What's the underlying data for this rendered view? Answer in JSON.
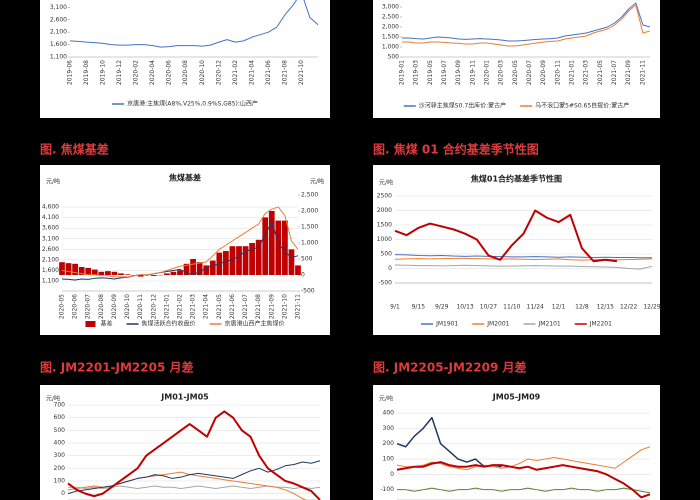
{
  "captions": [
    "图. 焦煤基差",
    "图. 焦煤 01 合约基差季节性图",
    "图. JM2201-JM2205 月差",
    "图. JM2205-JM2209 月差"
  ],
  "chart_data": [
    {
      "type": "line",
      "categories": [
        "2019-06",
        null,
        "2019-08",
        null,
        "2019-10",
        null,
        "2019-12",
        null,
        "2020-02",
        null,
        "2020-04",
        null,
        "2020-06",
        null,
        "2020-08",
        null,
        "2020-10",
        null,
        "2020-12",
        null,
        "2021-02",
        null,
        "2021-04",
        null,
        "2021-06",
        null,
        "2021-08",
        null,
        "2021-10",
        null,
        null
      ],
      "ylim": [
        1100,
        3600
      ],
      "yticks": [
        {
          "value": 1100,
          "label": "1,100"
        },
        {
          "value": 1600,
          "label": "1,600"
        },
        {
          "value": 2100,
          "label": "2,100"
        },
        {
          "value": 2600,
          "label": "2,600"
        },
        {
          "value": 3100,
          "label": "3,100"
        }
      ],
      "grid": false,
      "series": [
        {
          "name": "京唐港:主焦煤(A8%,V25%,0.9%S,G85):山西产",
          "color": "#4472c4",
          "values": [
            1750,
            1730,
            1700,
            1680,
            1650,
            1600,
            1580,
            1580,
            1600,
            1600,
            1560,
            1500,
            1520,
            1560,
            1560,
            1560,
            1540,
            1580,
            1700,
            1800,
            1700,
            1750,
            1900,
            2000,
            2100,
            2300,
            2800,
            3200,
            3700,
            2700,
            2400
          ]
        }
      ]
    },
    {
      "type": "line",
      "categories": [
        "2019-01",
        null,
        "2019-03",
        null,
        "2019-05",
        null,
        "2019-07",
        null,
        "2019-09",
        null,
        "2019-11",
        null,
        "2020-01",
        null,
        "2020-03",
        null,
        "2020-05",
        null,
        "2020-07",
        null,
        "2020-09",
        null,
        "2020-11",
        null,
        "2021-01",
        null,
        "2021-03",
        null,
        "2021-05",
        null,
        "2021-07",
        null,
        "2021-09",
        null,
        "2021-11",
        null
      ],
      "ylim": [
        500,
        3500
      ],
      "yticks": [
        500,
        {
          "value": 1000,
          "label": "1,000"
        },
        {
          "value": 1500,
          "label": "1,500"
        },
        {
          "value": 2000,
          "label": "2,000"
        },
        {
          "value": 2500,
          "label": "2,500"
        },
        {
          "value": 3000,
          "label": "3,000"
        }
      ],
      "grid": false,
      "series": [
        {
          "name": "沙河驿主焦煤S0.7出库价:蒙古产",
          "color": "#4472c4",
          "values": [
            1450,
            1450,
            1420,
            1400,
            1450,
            1500,
            1480,
            1450,
            1400,
            1380,
            1400,
            1420,
            1400,
            1380,
            1350,
            1300,
            1300,
            1320,
            1350,
            1380,
            1400,
            1420,
            1450,
            1550,
            1600,
            1650,
            1700,
            1800,
            1900,
            2000,
            2200,
            2500,
            2900,
            3200,
            2100,
            2000
          ]
        },
        {
          "name": "乌不浪口蒙5#S0.65自提价:蒙古产",
          "color": "#ed7d31",
          "values": [
            1250,
            1250,
            1200,
            1200,
            1250,
            1250,
            1230,
            1200,
            1180,
            1150,
            1150,
            1200,
            1200,
            1150,
            1100,
            1050,
            1050,
            1100,
            1150,
            1200,
            1250,
            1280,
            1300,
            1400,
            1450,
            1500,
            1550,
            1700,
            1800,
            1900,
            2100,
            2400,
            2800,
            3100,
            1700,
            1800
          ]
        }
      ]
    },
    {
      "type": "combo",
      "title": "焦煤基差",
      "yunit": "元/吨",
      "y2unit": "元/吨",
      "categories": [
        "2020-05",
        null,
        "2020-06",
        null,
        "2020-07",
        null,
        "2020-08",
        null,
        "2020-09",
        null,
        "2020-10",
        null,
        "2020-11",
        null,
        "2020-12",
        null,
        "2021-01",
        null,
        "2021-02",
        null,
        "2021-03",
        null,
        "2021-04",
        null,
        "2021-05",
        null,
        "2021-06",
        null,
        "2021-07",
        null,
        "2021-08",
        null,
        "2021-09",
        null,
        "2021-10",
        null,
        "2021-11"
      ],
      "ylim": [
        630,
        5170
      ],
      "yticks": [
        {
          "value": 1100,
          "label": "1,100"
        },
        {
          "value": 1600,
          "label": "1,600"
        },
        {
          "value": 2100,
          "label": "2,100"
        },
        {
          "value": 2600,
          "label": "2,600"
        },
        {
          "value": 3100,
          "label": "3,100"
        },
        {
          "value": 3600,
          "label": "3,600"
        },
        {
          "value": 4100,
          "label": "4,100"
        },
        {
          "value": 4600,
          "label": "4,600"
        }
      ],
      "y2lim": [
        -500,
        2500
      ],
      "y2ticks": [
        -500,
        0,
        500,
        {
          "value": 1000,
          "label": "1,000"
        },
        {
          "value": 1500,
          "label": "1,500"
        },
        {
          "value": 2000,
          "label": "2,000"
        },
        {
          "value": 2500,
          "label": "2,500"
        }
      ],
      "grid": true,
      "series": [
        {
          "name": "基差",
          "color": "#c00000",
          "kind": "bar",
          "axis": "y2",
          "values": [
            400,
            370,
            350,
            250,
            220,
            170,
            100,
            120,
            100,
            50,
            20,
            0,
            -50,
            20,
            -30,
            0,
            50,
            100,
            150,
            350,
            500,
            400,
            300,
            450,
            700,
            750,
            900,
            900,
            900,
            1000,
            1100,
            1800,
            2000,
            1700,
            1700,
            800,
            300
          ]
        },
        {
          "name": "焦煤活跃合约收盘价",
          "color": "#203864",
          "values": [
            1200,
            1180,
            1150,
            1200,
            1180,
            1230,
            1250,
            1230,
            1200,
            1250,
            1280,
            1350,
            1400,
            1380,
            1450,
            1500,
            1550,
            1600,
            1650,
            1500,
            1400,
            1550,
            1700,
            1850,
            1900,
            2050,
            2100,
            2300,
            2500,
            2600,
            2700,
            3300,
            3900,
            2900,
            2500,
            2200,
            2300
          ]
        },
        {
          "name": "京唐港山西产主焦煤价",
          "color": "#ed7d31",
          "values": [
            1600,
            1550,
            1500,
            1450,
            1400,
            1400,
            1350,
            1350,
            1300,
            1300,
            1300,
            1350,
            1400,
            1400,
            1450,
            1500,
            1600,
            1700,
            1800,
            1850,
            1900,
            1950,
            2000,
            2300,
            2600,
            2800,
            3000,
            3200,
            3400,
            3600,
            3800,
            4300,
            4500,
            4600,
            4200,
            3000,
            2600
          ]
        }
      ]
    },
    {
      "type": "line",
      "title": "焦煤01合约基差季节性图",
      "yunit": "元/吨",
      "categories": [
        "9/1",
        null,
        "9/15",
        null,
        "9/29",
        null,
        "10/13",
        null,
        "10/27",
        null,
        "11/10",
        null,
        "11/24",
        null,
        "12/1",
        null,
        "12/8",
        null,
        "12/15",
        null,
        "12/22",
        null,
        "12/29"
      ],
      "ylim": [
        -500,
        2500
      ],
      "yticks": [
        -500,
        0,
        500,
        1000,
        1500,
        2000,
        2500
      ],
      "grid": true,
      "series": [
        {
          "name": "JM1901",
          "color": "#4472c4",
          "values": [
            480,
            470,
            450,
            440,
            450,
            430,
            420,
            430,
            420,
            410,
            400,
            400,
            410,
            400,
            390,
            400,
            390,
            380,
            390,
            380,
            380,
            370,
            370
          ]
        },
        {
          "name": "JM2001",
          "color": "#ed7d31",
          "values": [
            320,
            330,
            340,
            330,
            340,
            350,
            350,
            340,
            330,
            320,
            330,
            320,
            310,
            320,
            330,
            300,
            290,
            300,
            310,
            300,
            310,
            320,
            330
          ]
        },
        {
          "name": "JM2101",
          "color": "#a5a5a5",
          "values": [
            120,
            110,
            100,
            100,
            90,
            100,
            110,
            100,
            90,
            80,
            80,
            90,
            100,
            90,
            80,
            80,
            70,
            60,
            50,
            40,
            0,
            -20,
            80
          ]
        },
        {
          "name": "JM2201",
          "color": "#c00000",
          "width": 2,
          "values": [
            1300,
            1150,
            1400,
            1550,
            1450,
            1350,
            1200,
            1000,
            450,
            300,
            800,
            1200,
            2000,
            1750,
            1600,
            1850,
            700,
            250,
            300,
            250,
            null,
            null,
            null
          ]
        }
      ]
    },
    {
      "type": "line",
      "title": "JM01-JM05",
      "yunit": "元/吨",
      "ylim": [
        -90,
        740
      ],
      "yticks": [
        0,
        100,
        200,
        300,
        400,
        500,
        600,
        700
      ],
      "grid": true,
      "series": [
        {
          "color": "#a5a5a5",
          "values": [
            50,
            50,
            40,
            50,
            40,
            50,
            60,
            50,
            40,
            50,
            60,
            50,
            50,
            40,
            50,
            60,
            50,
            40,
            50,
            60,
            50,
            40,
            50,
            60,
            50,
            50,
            40,
            50,
            40,
            50
          ]
        },
        {
          "color": "#ed7d31",
          "values": [
            30,
            40,
            50,
            60,
            50,
            60,
            80,
            100,
            120,
            130,
            140,
            150,
            160,
            170,
            150,
            140,
            130,
            120,
            110,
            100,
            90,
            80,
            70,
            60,
            50,
            30,
            0,
            -40,
            -70,
            -80
          ]
        },
        {
          "color": "#203864",
          "values": [
            0,
            20,
            30,
            40,
            50,
            60,
            80,
            100,
            120,
            130,
            150,
            140,
            120,
            130,
            150,
            160,
            150,
            140,
            130,
            120,
            150,
            180,
            200,
            170,
            190,
            220,
            230,
            250,
            240,
            260
          ]
        },
        {
          "color": "#c00000",
          "width": 2,
          "values": [
            80,
            30,
            0,
            -20,
            0,
            50,
            100,
            150,
            200,
            300,
            350,
            400,
            450,
            500,
            550,
            500,
            450,
            600,
            650,
            600,
            500,
            450,
            300,
            200,
            150,
            100,
            80,
            50,
            20,
            -50
          ]
        }
      ]
    },
    {
      "type": "line",
      "title": "JM05-JM09",
      "yunit": "元/吨",
      "ylim": [
        -200,
        420
      ],
      "yticks": [
        -100,
        0,
        100,
        200,
        300,
        400
      ],
      "grid": true,
      "series": [
        {
          "color": "#548235",
          "values": [
            -100,
            -100,
            -110,
            -100,
            -90,
            -100,
            -110,
            -100,
            -100,
            -90,
            -100,
            -100,
            -110,
            -100,
            -100,
            -90,
            -100,
            -110,
            -100,
            -100,
            -90,
            -100,
            -100,
            -110,
            -100,
            -100,
            -90,
            -100,
            -110,
            -120
          ]
        },
        {
          "color": "#ed7d31",
          "values": [
            60,
            50,
            50,
            60,
            80,
            70,
            50,
            40,
            30,
            50,
            60,
            50,
            40,
            50,
            70,
            100,
            90,
            100,
            110,
            100,
            90,
            80,
            70,
            60,
            50,
            40,
            80,
            120,
            160,
            180
          ]
        },
        {
          "color": "#203864",
          "width": 1.5,
          "values": [
            200,
            180,
            250,
            300,
            370,
            200,
            150,
            100,
            80,
            100,
            50,
            60,
            50,
            null,
            null,
            null,
            null,
            null,
            null,
            null,
            null,
            null,
            null,
            null,
            null,
            null,
            null,
            null,
            null,
            null
          ]
        },
        {
          "color": "#c00000",
          "width": 2,
          "values": [
            30,
            40,
            50,
            50,
            70,
            80,
            60,
            50,
            50,
            60,
            50,
            60,
            60,
            50,
            40,
            50,
            30,
            40,
            50,
            60,
            50,
            40,
            30,
            20,
            0,
            -30,
            -60,
            -100,
            -150,
            -130
          ]
        }
      ]
    }
  ]
}
